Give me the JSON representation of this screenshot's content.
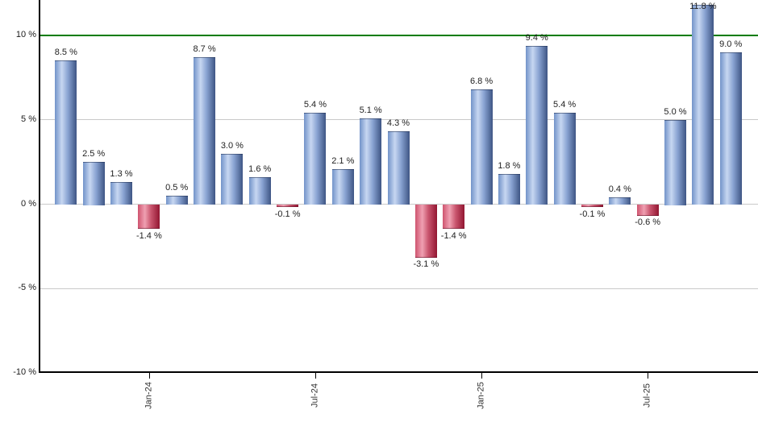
{
  "chart_data": {
    "type": "bar",
    "title": "",
    "xlabel": "",
    "ylabel": "",
    "unit": "%",
    "values": [
      8.5,
      2.5,
      1.3,
      -1.4,
      0.5,
      8.7,
      3.0,
      1.6,
      -0.1,
      5.4,
      2.1,
      5.1,
      4.3,
      -3.1,
      -1.4,
      6.8,
      1.8,
      9.4,
      5.4,
      -0.1,
      0.4,
      -0.6,
      5.0,
      11.8,
      9.0
    ],
    "value_labels": [
      "8.5 %",
      "2.5 %",
      "1.3 %",
      "-1.4 %",
      "0.5 %",
      "8.7 %",
      "3.0 %",
      "1.6 %",
      "-0.1 %",
      "5.4 %",
      "2.1 %",
      "5.1 %",
      "4.3 %",
      "-3.1 %",
      "-1.4 %",
      "6.8 %",
      "1.8 %",
      "9.4 %",
      "5.4 %",
      "-0.1 %",
      "0.4 %",
      "-0.6 %",
      "5.0 %",
      "11.8 %",
      "9.0 %"
    ],
    "bar_count": 25,
    "x_axis": {
      "ticks": [
        {
          "bar_index": 3,
          "label": "Jan-24"
        },
        {
          "bar_index": 9,
          "label": "Jul-24"
        },
        {
          "bar_index": 15,
          "label": "Jan-25"
        },
        {
          "bar_index": 21,
          "label": "Jul-25"
        }
      ],
      "tick_label_rotation_deg": -90
    },
    "y_axis": {
      "ticks": [
        {
          "value": 10,
          "label": "10 %"
        },
        {
          "value": 5,
          "label": "5 %"
        },
        {
          "value": 0,
          "label": "0 %"
        },
        {
          "value": -5,
          "label": "-5 %"
        },
        {
          "value": -10,
          "label": "-10 %"
        }
      ],
      "ylim": [
        -10,
        12.1
      ]
    },
    "gridline_values": [
      5,
      0,
      -5
    ],
    "grid": true,
    "legend": false,
    "reference_line": {
      "value": 10,
      "color": "#007c00"
    },
    "colors": {
      "positive_bar_gradient": [
        "#7293c9",
        "#c7d7f1",
        "#89a3d2",
        "#3e5584"
      ],
      "negative_bar_gradient": [
        "#cf546f",
        "#efa0b2",
        "#c9556e",
        "#921631"
      ],
      "gridline": "#c9c9c9",
      "axis": "#000000",
      "value_label": "#222222",
      "y_tick_label": "#1a1a1a",
      "x_tick_label": "#333333",
      "background": "#ffffff"
    }
  }
}
